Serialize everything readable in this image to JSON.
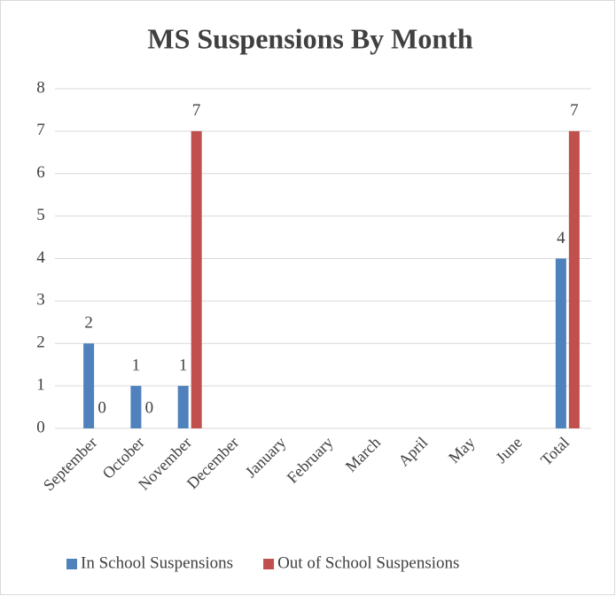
{
  "chart_data": {
    "type": "bar",
    "title": "MS Suspensions By Month",
    "categories": [
      "September",
      "October",
      "November",
      "December",
      "January",
      "February",
      "March",
      "April",
      "May",
      "June",
      "Total"
    ],
    "series": [
      {
        "name": "In School Suspensions",
        "color": "#4f81bd",
        "values": [
          2,
          1,
          1,
          null,
          null,
          null,
          null,
          null,
          null,
          null,
          4
        ]
      },
      {
        "name": "Out of School Suspensions",
        "color": "#c0504d",
        "values": [
          0,
          0,
          7,
          null,
          null,
          null,
          null,
          null,
          null,
          null,
          7
        ]
      }
    ],
    "ylim": [
      0,
      8
    ],
    "yticks": [
      0,
      1,
      2,
      3,
      4,
      5,
      6,
      7,
      8
    ],
    "grid": true,
    "legend": "bottom"
  }
}
